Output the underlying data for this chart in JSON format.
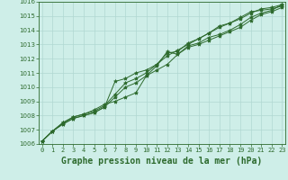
{
  "title": "Graphe pression niveau de la mer (hPa)",
  "xlabel_hours": [
    0,
    1,
    2,
    3,
    4,
    5,
    6,
    7,
    8,
    9,
    10,
    11,
    12,
    13,
    14,
    15,
    16,
    17,
    18,
    19,
    20,
    21,
    22,
    23
  ],
  "ylim": [
    1006,
    1016
  ],
  "yticks": [
    1006,
    1007,
    1008,
    1009,
    1010,
    1011,
    1012,
    1013,
    1014,
    1015,
    1016
  ],
  "background_color": "#ceeee8",
  "grid_color": "#b0d8d2",
  "line_color": "#2d6a2d",
  "series": [
    [
      1006.2,
      1006.9,
      1007.5,
      1007.9,
      1008.1,
      1008.3,
      1008.7,
      1009.5,
      1010.3,
      1010.6,
      1011.0,
      1011.6,
      1012.4,
      1012.5,
      1013.1,
      1013.4,
      1013.8,
      1014.3,
      1014.5,
      1014.8,
      1015.2,
      1015.5,
      1015.6,
      1015.8
    ],
    [
      1006.2,
      1006.9,
      1007.4,
      1007.8,
      1008.0,
      1008.2,
      1008.6,
      1009.3,
      1010.0,
      1010.3,
      1010.8,
      1011.2,
      1011.6,
      1012.3,
      1012.8,
      1013.0,
      1013.3,
      1013.6,
      1013.9,
      1014.2,
      1014.7,
      1015.1,
      1015.3,
      1015.6
    ],
    [
      1006.2,
      1006.9,
      1007.4,
      1007.8,
      1008.0,
      1008.2,
      1008.6,
      1010.4,
      1010.6,
      1011.0,
      1011.2,
      1011.6,
      1012.2,
      1012.6,
      1013.0,
      1013.4,
      1013.8,
      1014.2,
      1014.5,
      1014.9,
      1015.3,
      1015.4,
      1015.5,
      1015.7
    ],
    [
      1006.2,
      1006.9,
      1007.5,
      1007.9,
      1008.1,
      1008.4,
      1008.8,
      1009.0,
      1009.3,
      1009.6,
      1010.8,
      1011.5,
      1012.5,
      1012.3,
      1012.9,
      1013.1,
      1013.5,
      1013.7,
      1014.0,
      1014.4,
      1014.9,
      1015.2,
      1015.4,
      1015.8
    ]
  ],
  "marker": "*",
  "markersize": 3,
  "linewidth": 0.7,
  "title_fontsize": 7,
  "tick_fontsize": 5,
  "ylabel_fontsize": 5
}
